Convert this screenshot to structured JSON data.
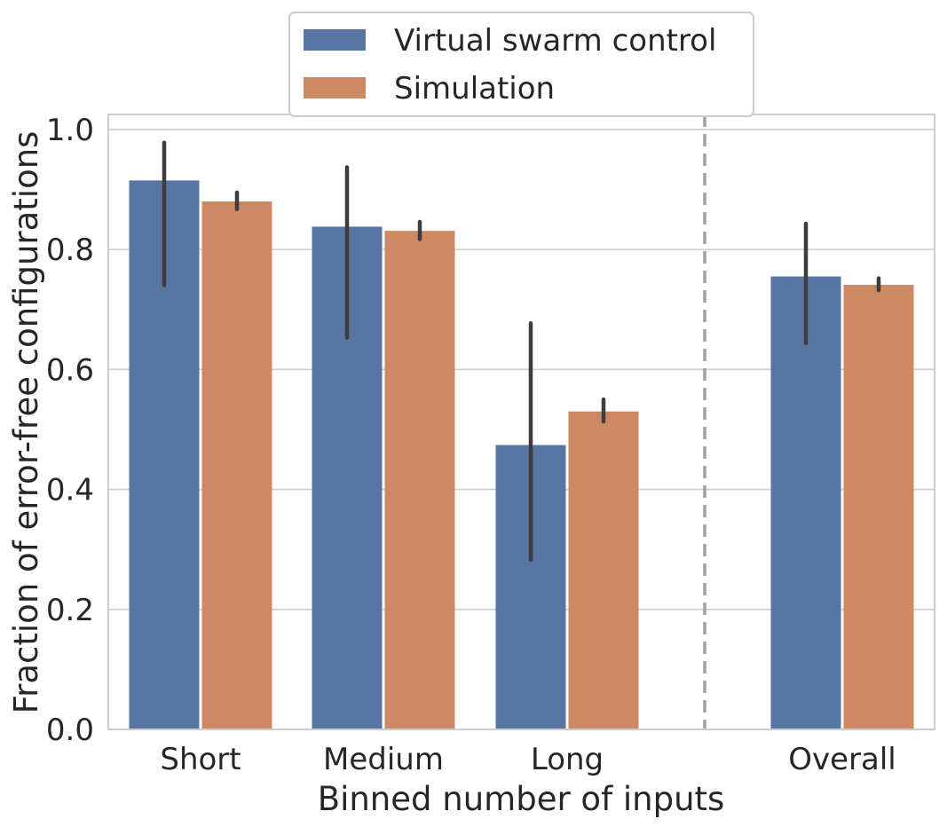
{
  "chart_data": {
    "type": "bar",
    "title": "",
    "xlabel": "Binned number of inputs",
    "ylabel": "Fraction of error-free configurations",
    "ylim": [
      0,
      1.025
    ],
    "yticks": [
      0.0,
      0.2,
      0.4,
      0.6,
      0.8,
      1.0
    ],
    "ytick_labels": [
      "0.0",
      "0.2",
      "0.4",
      "0.6",
      "0.8",
      "1.0"
    ],
    "categories": [
      "Short",
      "Medium",
      "Long",
      "Overall"
    ],
    "grid": true,
    "legend_position": "top-center",
    "divider": "dashed vertical line between Long and Overall",
    "series": [
      {
        "name": "Virtual swarm control",
        "color": "#5975a4",
        "values": [
          0.915,
          0.838,
          0.474,
          0.755
        ],
        "error_low": [
          0.74,
          0.653,
          0.283,
          0.644
        ],
        "error_high": [
          0.978,
          0.937,
          0.677,
          0.843
        ]
      },
      {
        "name": "Simulation",
        "color": "#cc8963",
        "values": [
          0.88,
          0.831,
          0.53,
          0.741
        ],
        "error_low": [
          0.867,
          0.817,
          0.513,
          0.732
        ],
        "error_high": [
          0.895,
          0.846,
          0.55,
          0.752
        ]
      }
    ]
  }
}
